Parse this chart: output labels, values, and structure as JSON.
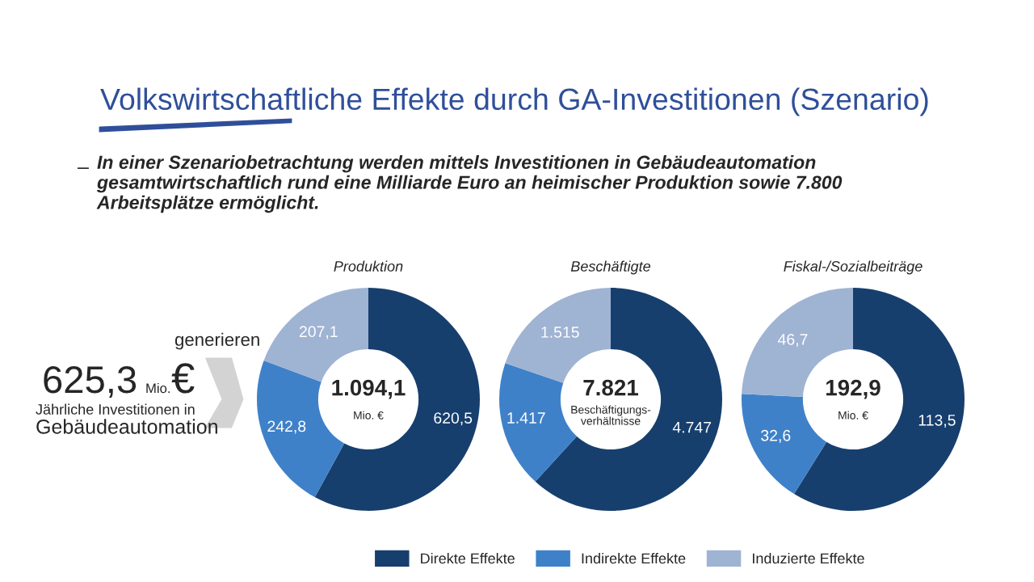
{
  "chart_data": [
    {
      "type": "other",
      "title": "Volkswirtschaftliche Effekte durch GA-Investitionen (Szenario)",
      "annotations": [
        "–",
        "In einer Szenariobetrachtung werden mittels Investitionen in Gebäudeautomation gesamtwirtschaftlich rund eine Milliarde Euro an heimischer Produktion sowie 7.800 Arbeitsplätze ermöglicht.",
        "625,3",
        "Mio.",
        "€",
        "Jährliche Investitionen in",
        "Gebäudeautomation",
        "generieren"
      ]
    },
    {
      "type": "donut",
      "title": "Produktion",
      "categories": [
        "Direkte Effekte",
        "Indirekte Effekte",
        "Induzierte Effekte"
      ],
      "values": [
        620.5,
        242.8,
        207.1
      ],
      "value_labels": [
        "620,5",
        "242,8",
        "207,1"
      ],
      "colors": [
        "#173f6e",
        "#3f81c9",
        "#9fb3d3"
      ],
      "annotations": [
        "1.094,1",
        "Mio. €"
      ],
      "legend": "bottom"
    },
    {
      "type": "donut",
      "title": "Beschäftigte",
      "categories": [
        null,
        null,
        null
      ],
      "values": [
        4747,
        1417,
        1515
      ],
      "value_labels": [
        "4.747",
        "1.417",
        "1.515"
      ],
      "colors": [
        "#173f6e",
        "#3f81c9",
        "#9fb3d3"
      ],
      "annotations": [
        "7.821",
        "Beschäftigungs-\nverhältnisse"
      ],
      "legend": false
    },
    {
      "type": "donut",
      "title": "Fiskal-/Sozialbeiträge",
      "categories": [
        null,
        null,
        null
      ],
      "values": [
        113.5,
        32.6,
        46.7
      ],
      "value_labels": [
        "113,5",
        "32,6",
        "46,7"
      ],
      "colors": [
        "#173f6e",
        "#3f81c9",
        "#9fb3d3"
      ],
      "annotations": [
        "192,9",
        "Mio. €"
      ],
      "legend": false
    }
  ]
}
